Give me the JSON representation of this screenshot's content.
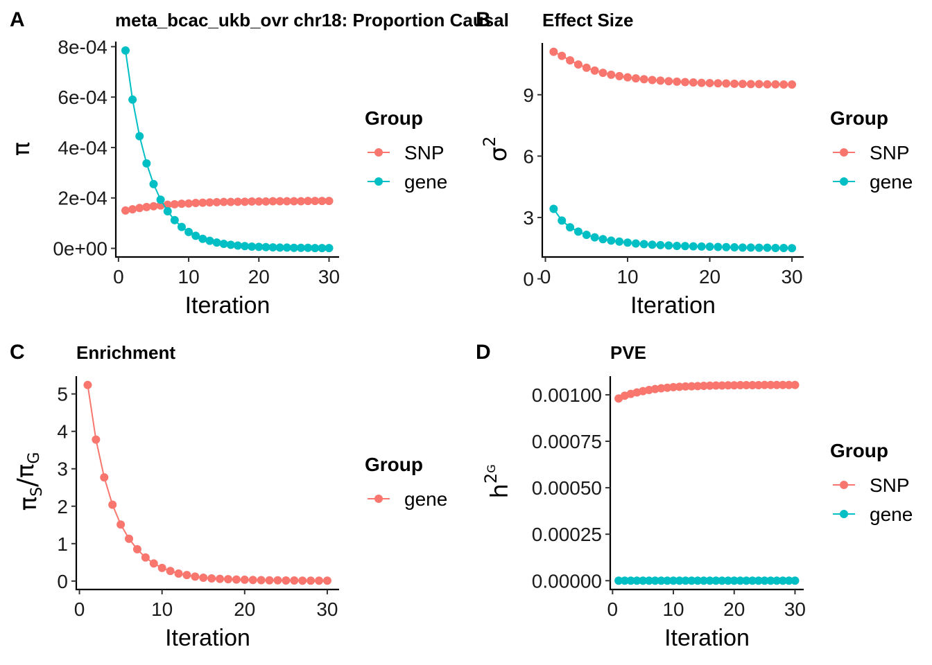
{
  "colors": {
    "SNP": "#F8766D",
    "gene": "#00BFC4"
  },
  "chart_data": [
    {
      "id": "A",
      "letter": "A",
      "type": "line",
      "title": "meta_bcac_ukb_ovr chr18: Proportion Causal",
      "xlabel": "Iteration",
      "ylabel": "π",
      "xlim": [
        0,
        30
      ],
      "ylim": [
        0,
        0.0008
      ],
      "xticks": [
        0,
        10,
        20,
        30
      ],
      "yticks": [
        0,
        0.0002,
        0.0004,
        0.0006,
        0.0008
      ],
      "ytick_labels": [
        "0e+00",
        "2e-04",
        "4e-04",
        "6e-04",
        "8e-04"
      ],
      "legend_title": "Group",
      "legend": [
        {
          "label": "SNP",
          "color": "#F8766D"
        },
        {
          "label": "gene",
          "color": "#00BFC4"
        }
      ],
      "series": [
        {
          "name": "SNP",
          "color": "#F8766D",
          "x": [
            1,
            2,
            3,
            4,
            5,
            6,
            7,
            8,
            9,
            10,
            11,
            12,
            13,
            14,
            15,
            16,
            17,
            18,
            19,
            20,
            21,
            22,
            23,
            24,
            25,
            26,
            27,
            28,
            29,
            30
          ],
          "values": [
            0.00015,
            0.000155,
            0.00016,
            0.000164,
            0.000167,
            0.00017,
            0.000173,
            0.000175,
            0.000177,
            0.000178,
            0.00018,
            0.000181,
            0.000182,
            0.000183,
            0.000184,
            0.000184,
            0.000185,
            0.000185,
            0.000186,
            0.000186,
            0.000186,
            0.000187,
            0.000187,
            0.000187,
            0.000187,
            0.000187,
            0.000188,
            0.000188,
            0.000188,
            0.000188
          ]
        },
        {
          "name": "gene",
          "color": "#00BFC4",
          "x": [
            1,
            2,
            3,
            4,
            5,
            6,
            7,
            8,
            9,
            10,
            11,
            12,
            13,
            14,
            15,
            16,
            17,
            18,
            19,
            20,
            21,
            22,
            23,
            24,
            25,
            26,
            27,
            28,
            29,
            30
          ],
          "values": [
            0.000785,
            0.00059,
            0.000445,
            0.000337,
            0.000255,
            0.000193,
            0.000147,
            0.000112,
            8.5e-05,
            6.5e-05,
            5e-05,
            3.8e-05,
            3e-05,
            2.3e-05,
            1.8e-05,
            1.4e-05,
            1.1e-05,
            9e-06,
            7e-06,
            6e-06,
            5e-06,
            4e-06,
            3e-06,
            3e-06,
            2e-06,
            2e-06,
            2e-06,
            1e-06,
            1e-06,
            1e-06
          ]
        }
      ]
    },
    {
      "id": "B",
      "letter": "B",
      "type": "scatter",
      "title": "Effect Size",
      "xlabel": "Iteration",
      "ylabel": "σ",
      "ylabel_sup": "2",
      "xlim": [
        0,
        30
      ],
      "ylim": [
        0,
        11.5
      ],
      "xticks": [
        0,
        10,
        20,
        30
      ],
      "yticks": [
        0,
        3,
        6,
        9
      ],
      "ytick_labels": [
        "0",
        "3",
        "6",
        "9"
      ],
      "legend_title": "Group",
      "legend": [
        {
          "label": "SNP",
          "color": "#F8766D"
        },
        {
          "label": "gene",
          "color": "#00BFC4"
        }
      ],
      "series": [
        {
          "name": "SNP",
          "color": "#F8766D",
          "x": [
            1,
            2,
            3,
            4,
            5,
            6,
            7,
            8,
            9,
            10,
            11,
            12,
            13,
            14,
            15,
            16,
            17,
            18,
            19,
            20,
            21,
            22,
            23,
            24,
            25,
            26,
            27,
            28,
            29,
            30
          ],
          "values": [
            11.1,
            10.9,
            10.68,
            10.48,
            10.32,
            10.18,
            10.07,
            9.98,
            9.91,
            9.85,
            9.8,
            9.76,
            9.72,
            9.69,
            9.66,
            9.64,
            9.62,
            9.6,
            9.58,
            9.57,
            9.56,
            9.55,
            9.54,
            9.53,
            9.52,
            9.52,
            9.51,
            9.51,
            9.5,
            9.5
          ]
        },
        {
          "name": "gene",
          "color": "#00BFC4",
          "x": [
            1,
            2,
            3,
            4,
            5,
            6,
            7,
            8,
            9,
            10,
            11,
            12,
            13,
            14,
            15,
            16,
            17,
            18,
            19,
            20,
            21,
            22,
            23,
            24,
            25,
            26,
            27,
            28,
            29,
            30
          ],
          "values": [
            3.42,
            2.85,
            2.52,
            2.31,
            2.15,
            2.03,
            1.94,
            1.87,
            1.82,
            1.77,
            1.73,
            1.7,
            1.67,
            1.65,
            1.63,
            1.61,
            1.6,
            1.59,
            1.58,
            1.57,
            1.56,
            1.55,
            1.54,
            1.53,
            1.53,
            1.52,
            1.52,
            1.51,
            1.51,
            1.5
          ]
        }
      ]
    },
    {
      "id": "C",
      "letter": "C",
      "type": "line",
      "title": "Enrichment",
      "xlabel": "Iteration",
      "ylabel": "πS/πG",
      "xlim": [
        0,
        30
      ],
      "ylim": [
        0,
        5.5
      ],
      "xticks": [
        0,
        10,
        20,
        30
      ],
      "yticks": [
        0,
        1,
        2,
        3,
        4,
        5
      ],
      "ytick_labels": [
        "0",
        "1",
        "2",
        "3",
        "4",
        "5"
      ],
      "legend_title": "Group",
      "legend": [
        {
          "label": "gene",
          "color": "#F8766D"
        }
      ],
      "series": [
        {
          "name": "gene",
          "color": "#F8766D",
          "x": [
            1,
            2,
            3,
            4,
            5,
            6,
            7,
            8,
            9,
            10,
            11,
            12,
            13,
            14,
            15,
            16,
            17,
            18,
            19,
            20,
            21,
            22,
            23,
            24,
            25,
            26,
            27,
            28,
            29,
            30
          ],
          "values": [
            5.24,
            3.78,
            2.77,
            2.04,
            1.51,
            1.13,
            0.85,
            0.63,
            0.47,
            0.35,
            0.27,
            0.2,
            0.16,
            0.12,
            0.09,
            0.07,
            0.06,
            0.05,
            0.04,
            0.035,
            0.03,
            0.025,
            0.02,
            0.02,
            0.015,
            0.015,
            0.01,
            0.01,
            0.01,
            0.01
          ]
        }
      ]
    },
    {
      "id": "D",
      "letter": "D",
      "type": "scatter",
      "title": "PVE",
      "xlabel": "Iteration",
      "ylabel": "h",
      "ylabel_sup": "2",
      "ylabel_sup2": "G",
      "xlim": [
        0,
        30
      ],
      "ylim": [
        0,
        0.0011
      ],
      "xticks": [
        0,
        10,
        20,
        30
      ],
      "yticks": [
        0,
        0.00025,
        0.0005,
        0.00075,
        0.001
      ],
      "ytick_labels": [
        "0.00000",
        "0.00025",
        "0.00050",
        "0.00075",
        "0.00100"
      ],
      "legend_title": "Group",
      "legend": [
        {
          "label": "SNP",
          "color": "#F8766D"
        },
        {
          "label": "gene",
          "color": "#00BFC4"
        }
      ],
      "series": [
        {
          "name": "SNP",
          "color": "#F8766D",
          "x": [
            1,
            2,
            3,
            4,
            5,
            6,
            7,
            8,
            9,
            10,
            11,
            12,
            13,
            14,
            15,
            16,
            17,
            18,
            19,
            20,
            21,
            22,
            23,
            24,
            25,
            26,
            27,
            28,
            29,
            30
          ],
          "values": [
            0.00098,
            0.000995,
            0.001005,
            0.001013,
            0.00102,
            0.001026,
            0.001031,
            0.001035,
            0.001038,
            0.001041,
            0.001043,
            0.001045,
            0.001046,
            0.001047,
            0.001048,
            0.001049,
            0.00105,
            0.00105,
            0.001051,
            0.001051,
            0.001052,
            0.001052,
            0.001052,
            0.001052,
            0.001053,
            0.001053,
            0.001053,
            0.001053,
            0.001053,
            0.001053
          ]
        },
        {
          "name": "gene",
          "color": "#00BFC4",
          "x": [
            1,
            2,
            3,
            4,
            5,
            6,
            7,
            8,
            9,
            10,
            11,
            12,
            13,
            14,
            15,
            16,
            17,
            18,
            19,
            20,
            21,
            22,
            23,
            24,
            25,
            26,
            27,
            28,
            29,
            30
          ],
          "values": [
            0,
            0,
            0,
            0,
            0,
            0,
            0,
            0,
            0,
            0,
            0,
            0,
            0,
            0,
            0,
            0,
            0,
            0,
            0,
            0,
            0,
            0,
            0,
            0,
            0,
            0,
            0,
            0,
            0,
            0
          ]
        }
      ]
    }
  ]
}
